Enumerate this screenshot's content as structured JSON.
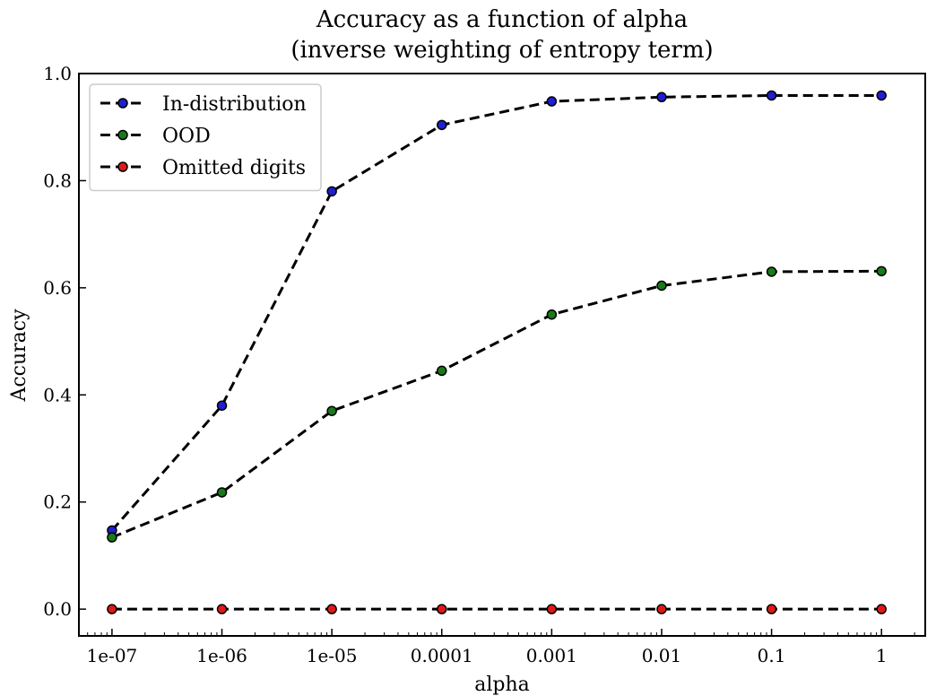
{
  "chart_data": {
    "type": "line",
    "title": "Accuracy as a function of alpha",
    "subtitle": "(inverse weighting of entropy term)",
    "xlabel": "alpha",
    "ylabel": "Accuracy",
    "x_scale": "log",
    "x": [
      "1e-07",
      "1e-06",
      "1e-05",
      "0.0001",
      "0.001",
      "0.01",
      "0.1",
      "1"
    ],
    "x_values": [
      1e-07,
      1e-06,
      1e-05,
      0.0001,
      0.001,
      0.01,
      0.1,
      1
    ],
    "xlim": [
      5e-08,
      2.5
    ],
    "ylim": [
      -0.05,
      1.0
    ],
    "yticks": [
      "0.0",
      "0.2",
      "0.4",
      "0.6",
      "0.8",
      "1.0"
    ],
    "ytick_values": [
      0,
      0.2,
      0.4,
      0.6,
      0.8,
      1.0
    ],
    "grid": false,
    "legend_position": "top-left",
    "line_style": "dashed",
    "line_color": "#000000",
    "series": [
      {
        "name": "In-distribution",
        "marker_color": "#1f1fd0",
        "values": [
          0.147,
          0.38,
          0.78,
          0.904,
          0.948,
          0.956,
          0.959,
          0.959
        ]
      },
      {
        "name": "OOD",
        "marker_color": "#1a7a1a",
        "values": [
          0.134,
          0.218,
          0.37,
          0.445,
          0.55,
          0.604,
          0.63,
          0.631
        ]
      },
      {
        "name": "Omitted digits",
        "marker_color": "#e01818",
        "values": [
          0.0,
          0.0,
          0.0,
          0.0,
          0.0,
          0.0,
          0.0,
          0.0
        ]
      }
    ]
  }
}
